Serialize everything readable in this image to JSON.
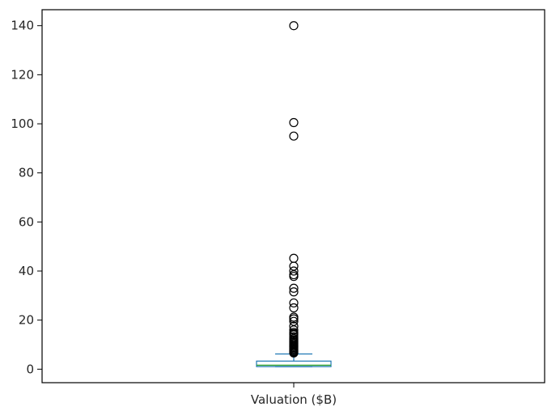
{
  "chart_data": {
    "type": "box",
    "categories": [
      "Valuation ($B)"
    ],
    "xlabel": "",
    "ylabel": "",
    "ylim": [
      -5.5,
      146.5
    ],
    "yticks": [
      0,
      20,
      40,
      60,
      80,
      100,
      120,
      140
    ],
    "grid": false,
    "series": [
      {
        "name": "",
        "whisker_low": 1.0,
        "q1": 1.05,
        "median": 1.6,
        "q3": 3.3,
        "whisker_high": 6.2,
        "outliers": [
          140,
          100.5,
          95,
          45.2,
          42,
          40,
          38.5,
          37.8,
          33,
          31.5,
          27,
          25,
          21.2,
          20.5,
          19.5,
          17.5,
          16,
          15,
          14.5,
          14,
          13.2,
          12.5,
          12,
          11.5,
          11,
          10.5,
          10,
          9.6,
          9.2,
          8.8,
          8.4,
          8,
          7.6,
          7.2,
          6.9,
          6.6
        ]
      }
    ],
    "colors": {
      "box": "#1f77b4",
      "median": "#2ca02c",
      "outlier": "#000000",
      "axes": "#000000",
      "text": "#262626"
    }
  }
}
